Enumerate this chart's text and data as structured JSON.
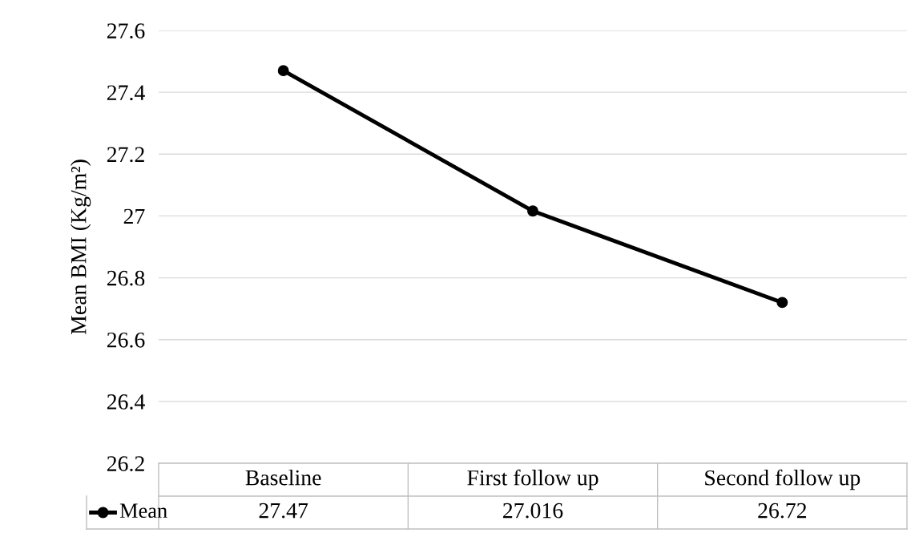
{
  "chart_data": {
    "type": "line",
    "ylabel": "Mean BMI (Kg/m²)",
    "categories": [
      "Baseline",
      "First follow up",
      "Second follow up"
    ],
    "series": [
      {
        "name": "Mean",
        "color": "#000000",
        "values": [
          27.47,
          27.016,
          26.72
        ]
      }
    ],
    "ylim": [
      26.2,
      27.6
    ],
    "yticks": [
      26.2,
      26.4,
      26.6,
      26.8,
      27,
      27.2,
      27.4,
      27.6
    ],
    "grid": "y",
    "legend": "bottom",
    "marker": "circle",
    "line_style": "solid",
    "data_labels": true
  }
}
